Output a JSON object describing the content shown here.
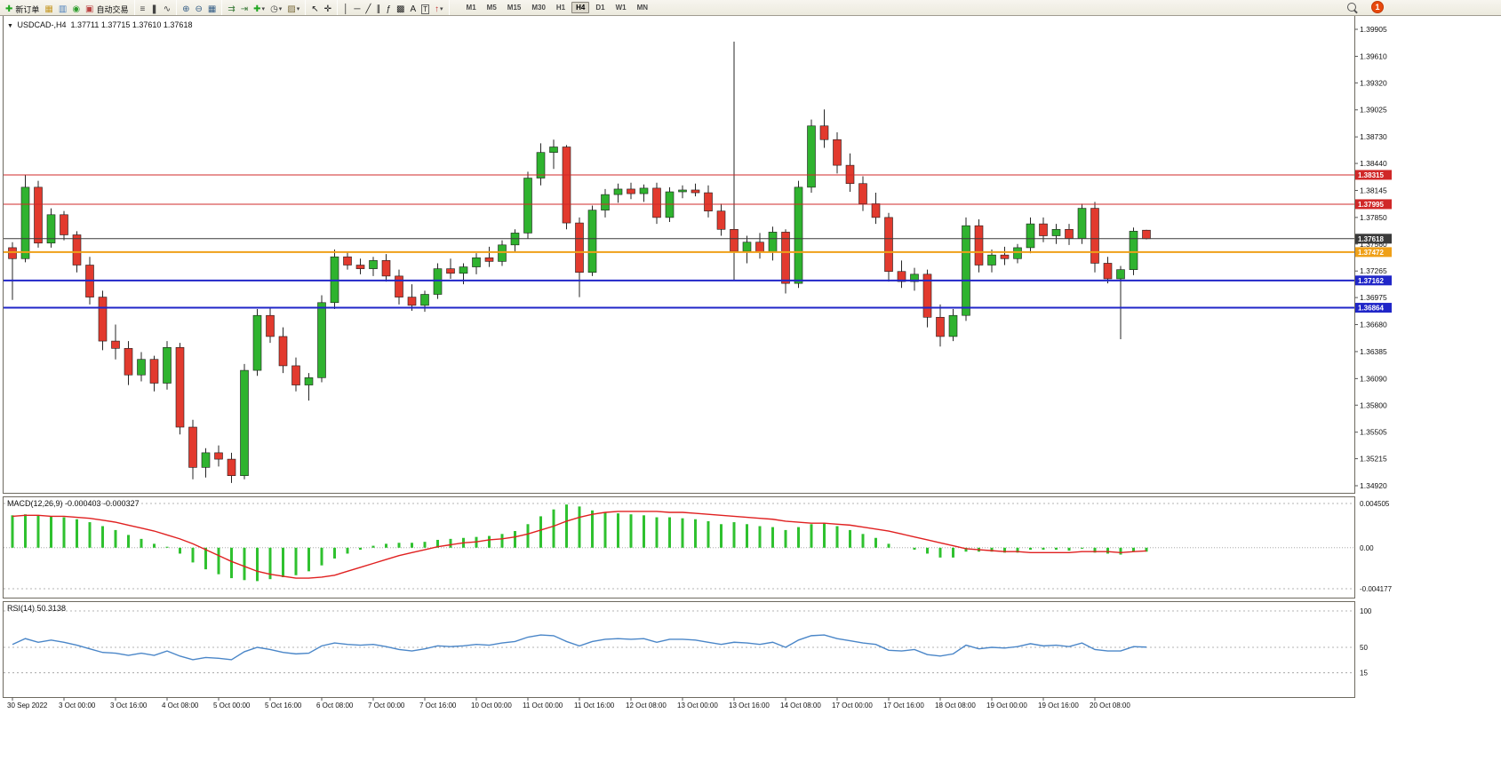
{
  "toolbar": {
    "badge": "1",
    "buttons": [
      {
        "name": "new-order",
        "icon": "new-order-icon",
        "glyph": "✚",
        "color": "#1fa51f",
        "label": "新订单"
      },
      {
        "name": "market-watch",
        "icon": "market-watch-icon",
        "glyph": "▦",
        "color": "#c79a29"
      },
      {
        "name": "data-window",
        "icon": "data-window-icon",
        "glyph": "▥",
        "color": "#4a7ebb"
      },
      {
        "name": "navigator",
        "icon": "navigator-icon",
        "glyph": "◉",
        "color": "#2f9e2f"
      },
      {
        "name": "auto-trading",
        "icon": "autotrading-icon",
        "glyph": "▣",
        "color": "#bb4444",
        "label": "自动交易"
      },
      {
        "type": "sep"
      },
      {
        "name": "bar-chart-mode",
        "icon": "ohlc-bars-icon",
        "glyph": "≡",
        "color": "#444444"
      },
      {
        "name": "candle-chart-mode",
        "icon": "candlestick-icon",
        "glyph": "❚",
        "color": "#444444"
      },
      {
        "name": "line-chart-mode",
        "icon": "line-chart-icon",
        "glyph": "∿",
        "color": "#444444"
      },
      {
        "type": "sep"
      },
      {
        "name": "zoom-in",
        "icon": "zoom-in-icon",
        "glyph": "⊕",
        "color": "#335c85"
      },
      {
        "name": "zoom-out",
        "icon": "zoom-out-icon",
        "glyph": "⊖",
        "color": "#335c85"
      },
      {
        "name": "tile-windows",
        "icon": "tile-windows-icon",
        "glyph": "▦",
        "color": "#335c85"
      },
      {
        "type": "sep"
      },
      {
        "name": "auto-scroll",
        "icon": "auto-scroll-icon",
        "glyph": "⇉",
        "color": "#3a7a3a"
      },
      {
        "name": "chart-shift",
        "icon": "chart-shift-icon",
        "glyph": "⇥",
        "color": "#3a7a3a"
      },
      {
        "name": "indicators",
        "icon": "add-indicator-icon",
        "glyph": "✚",
        "color": "#1fa51f",
        "caret": true
      },
      {
        "name": "periods",
        "icon": "clock-icon",
        "glyph": "◷",
        "color": "#444444",
        "caret": true
      },
      {
        "name": "templates",
        "icon": "template-icon",
        "glyph": "▨",
        "color": "#7a6a3a",
        "caret": true
      },
      {
        "type": "sep"
      },
      {
        "name": "cursor",
        "icon": "cursor-icon",
        "glyph": "↖",
        "color": "#222222"
      },
      {
        "name": "crosshair",
        "icon": "crosshair-icon",
        "glyph": "✛",
        "color": "#222222"
      },
      {
        "type": "sep"
      },
      {
        "name": "vertical-line",
        "icon": "vline-icon",
        "glyph": "│",
        "color": "#222222"
      },
      {
        "name": "horizontal-line",
        "icon": "hline-icon",
        "glyph": "─",
        "color": "#222222"
      },
      {
        "name": "trendline",
        "icon": "trendline-icon",
        "glyph": "╱",
        "color": "#222222"
      },
      {
        "name": "channel",
        "icon": "channel-icon",
        "glyph": "∥",
        "color": "#222222"
      },
      {
        "name": "fibonacci",
        "icon": "fibonacci-icon",
        "glyph": "ƒ",
        "color": "#222222"
      },
      {
        "name": "shapes",
        "icon": "shapes-icon",
        "glyph": "▩",
        "color": "#222222"
      },
      {
        "name": "text",
        "icon": "text-icon",
        "glyph": "A",
        "color": "#222222"
      },
      {
        "name": "text-label",
        "icon": "text-label-icon",
        "glyph": "T",
        "color": "#222222",
        "boxed": true
      },
      {
        "name": "arrows",
        "icon": "arrow-objects-icon",
        "glyph": "↑",
        "color": "#c03030",
        "caret": true
      },
      {
        "type": "sep"
      }
    ],
    "timeframes": [
      {
        "label": "M1"
      },
      {
        "label": "M5"
      },
      {
        "label": "M15"
      },
      {
        "label": "M30"
      },
      {
        "label": "H1"
      },
      {
        "label": "H4",
        "active": true
      },
      {
        "label": "D1"
      },
      {
        "label": "W1"
      },
      {
        "label": "MN"
      }
    ]
  },
  "chart": {
    "dropdown_marker": "▼",
    "symbol_title": "USDCAD-,H4",
    "ohlc_title": "1.37711 1.37715 1.37610 1.37618"
  },
  "chart_data": {
    "type": "candlestick",
    "symbol": "USDCAD",
    "timeframe": "H4",
    "colors": {
      "bull": "#2fb32f",
      "bear": "#e23a2e",
      "wick": "#262626",
      "candle_border": "#1c1c1c",
      "histogram": "#2fc12f",
      "signal": "#e02020",
      "rsi_line": "#4a86c8",
      "resistance": "#d02828",
      "support": "#2026c8",
      "pivot": "#efa018",
      "bid": "#3a3a3a"
    },
    "price_axis": {
      "min": 1.3492,
      "max": 1.39905,
      "ticks": [
        "1.39905",
        "1.39610",
        "1.39320",
        "1.39025",
        "1.38730",
        "1.38440",
        "1.38145",
        "1.37850",
        "1.37560",
        "1.37265",
        "1.36975",
        "1.36680",
        "1.36385",
        "1.36090",
        "1.35800",
        "1.35505",
        "1.35215",
        "1.34920"
      ]
    },
    "hlines": [
      {
        "name": "resistance-line-upper",
        "price": 1.38315,
        "color": "#d02828",
        "width": 1,
        "tag": "1.38315"
      },
      {
        "name": "resistance-line-lower",
        "price": 1.37995,
        "color": "#d02828",
        "width": 1,
        "tag": "1.37995"
      },
      {
        "name": "bid-price-line",
        "price": 1.37618,
        "color": "#3a3a3a",
        "width": 1,
        "tag": "1.37618"
      },
      {
        "name": "pivot-line-orange",
        "price": 1.37472,
        "color": "#efa018",
        "width": 2,
        "tag": "1.37472"
      },
      {
        "name": "support-line-upper",
        "price": 1.37162,
        "color": "#2026c8",
        "width": 2,
        "tag": "1.37162"
      },
      {
        "name": "support-line-lower",
        "price": 1.36864,
        "color": "#2026c8",
        "width": 2,
        "tag": "1.36864"
      }
    ],
    "x_label_every": 4,
    "x_labels": [
      "30 Sep 2022",
      "3 Oct 00:00",
      "3 Oct 16:00",
      "4 Oct 08:00",
      "5 Oct 00:00",
      "5 Oct 16:00",
      "6 Oct 08:00",
      "7 Oct 00:00",
      "7 Oct 16:00",
      "10 Oct 00:00",
      "11 Oct 00:00",
      "11 Oct 16:00",
      "12 Oct 08:00",
      "13 Oct 00:00",
      "13 Oct 16:00",
      "14 Oct 08:00",
      "17 Oct 00:00",
      "17 Oct 16:00",
      "18 Oct 08:00",
      "19 Oct 00:00",
      "19 Oct 16:00",
      "20 Oct 08:00"
    ],
    "candles": [
      [
        1.3752,
        1.3758,
        1.3695,
        1.374
      ],
      [
        1.374,
        1.3831,
        1.3736,
        1.3818
      ],
      [
        1.3818,
        1.3825,
        1.3752,
        1.3757
      ],
      [
        1.3757,
        1.3795,
        1.3752,
        1.3788
      ],
      [
        1.3788,
        1.3792,
        1.376,
        1.3766
      ],
      [
        1.3766,
        1.377,
        1.3725,
        1.3733
      ],
      [
        1.3733,
        1.3742,
        1.369,
        1.3698
      ],
      [
        1.3698,
        1.3705,
        1.364,
        1.365
      ],
      [
        1.365,
        1.3668,
        1.363,
        1.3642
      ],
      [
        1.3642,
        1.365,
        1.3602,
        1.3613
      ],
      [
        1.3613,
        1.3638,
        1.3606,
        1.363
      ],
      [
        1.363,
        1.3634,
        1.3595,
        1.3604
      ],
      [
        1.3604,
        1.365,
        1.3597,
        1.3643
      ],
      [
        1.3643,
        1.3648,
        1.3548,
        1.3556
      ],
      [
        1.3556,
        1.3564,
        1.3499,
        1.3512
      ],
      [
        1.3512,
        1.3533,
        1.3501,
        1.3528
      ],
      [
        1.3528,
        1.3536,
        1.3513,
        1.3521
      ],
      [
        1.3521,
        1.3528,
        1.3495,
        1.3503
      ],
      [
        1.3503,
        1.3625,
        1.3499,
        1.3618
      ],
      [
        1.3618,
        1.3685,
        1.3612,
        1.3678
      ],
      [
        1.3678,
        1.3687,
        1.3648,
        1.3655
      ],
      [
        1.3655,
        1.3665,
        1.3615,
        1.3623
      ],
      [
        1.3623,
        1.3632,
        1.3595,
        1.3602
      ],
      [
        1.3602,
        1.3615,
        1.3585,
        1.361
      ],
      [
        1.361,
        1.37,
        1.3605,
        1.3692
      ],
      [
        1.3692,
        1.375,
        1.3685,
        1.3742
      ],
      [
        1.3742,
        1.3748,
        1.3728,
        1.3733
      ],
      [
        1.3733,
        1.374,
        1.3723,
        1.3729
      ],
      [
        1.3729,
        1.3742,
        1.3721,
        1.3738
      ],
      [
        1.3738,
        1.3745,
        1.3715,
        1.3721
      ],
      [
        1.3721,
        1.3728,
        1.369,
        1.3698
      ],
      [
        1.3698,
        1.3712,
        1.3683,
        1.3689
      ],
      [
        1.3689,
        1.3705,
        1.3682,
        1.3701
      ],
      [
        1.3701,
        1.3735,
        1.3696,
        1.3729
      ],
      [
        1.3729,
        1.374,
        1.3718,
        1.3724
      ],
      [
        1.3724,
        1.3735,
        1.3712,
        1.3731
      ],
      [
        1.3731,
        1.3746,
        1.3723,
        1.3741
      ],
      [
        1.3741,
        1.3753,
        1.3731,
        1.3737
      ],
      [
        1.3737,
        1.376,
        1.3732,
        1.3755
      ],
      [
        1.3755,
        1.3772,
        1.3748,
        1.3768
      ],
      [
        1.3768,
        1.3835,
        1.3762,
        1.3828
      ],
      [
        1.3828,
        1.3866,
        1.382,
        1.3856
      ],
      [
        1.3856,
        1.387,
        1.3838,
        1.3862
      ],
      [
        1.3862,
        1.3864,
        1.3772,
        1.3779
      ],
      [
        1.3779,
        1.3785,
        1.3698,
        1.3725
      ],
      [
        1.3725,
        1.3798,
        1.3721,
        1.3793
      ],
      [
        1.3793,
        1.3816,
        1.3785,
        1.381
      ],
      [
        1.381,
        1.3822,
        1.3801,
        1.3816
      ],
      [
        1.3816,
        1.3823,
        1.3805,
        1.3811
      ],
      [
        1.3811,
        1.3821,
        1.3802,
        1.3817
      ],
      [
        1.3817,
        1.3823,
        1.3778,
        1.3785
      ],
      [
        1.3785,
        1.3818,
        1.378,
        1.3813
      ],
      [
        1.3813,
        1.382,
        1.3806,
        1.3815
      ],
      [
        1.3815,
        1.3822,
        1.3808,
        1.3812
      ],
      [
        1.3812,
        1.382,
        1.3785,
        1.3792
      ],
      [
        1.3792,
        1.38,
        1.3765,
        1.3772
      ],
      [
        1.3772,
        1.3977,
        1.3716,
        1.3748
      ],
      [
        1.3748,
        1.3765,
        1.3735,
        1.3758
      ],
      [
        1.3758,
        1.3768,
        1.374,
        1.3747
      ],
      [
        1.3747,
        1.3775,
        1.3738,
        1.3769
      ],
      [
        1.3769,
        1.3772,
        1.3702,
        1.3713
      ],
      [
        1.3713,
        1.3825,
        1.3708,
        1.3818
      ],
      [
        1.3818,
        1.3892,
        1.3812,
        1.3885
      ],
      [
        1.3885,
        1.3903,
        1.3861,
        1.387
      ],
      [
        1.387,
        1.3878,
        1.3833,
        1.3842
      ],
      [
        1.3842,
        1.3855,
        1.3813,
        1.3822
      ],
      [
        1.3822,
        1.383,
        1.3792,
        1.38
      ],
      [
        1.38,
        1.3812,
        1.3778,
        1.3785
      ],
      [
        1.3785,
        1.379,
        1.3715,
        1.3726
      ],
      [
        1.3726,
        1.3738,
        1.3708,
        1.3715
      ],
      [
        1.3715,
        1.373,
        1.3705,
        1.3723
      ],
      [
        1.3723,
        1.3728,
        1.3665,
        1.3676
      ],
      [
        1.3676,
        1.369,
        1.3644,
        1.3655
      ],
      [
        1.3655,
        1.3685,
        1.365,
        1.3678
      ],
      [
        1.3678,
        1.3785,
        1.3672,
        1.3776
      ],
      [
        1.3776,
        1.3783,
        1.3725,
        1.3733
      ],
      [
        1.3733,
        1.375,
        1.3725,
        1.3744
      ],
      [
        1.3744,
        1.3753,
        1.3733,
        1.374
      ],
      [
        1.374,
        1.3756,
        1.3735,
        1.3752
      ],
      [
        1.3752,
        1.3785,
        1.3746,
        1.3778
      ],
      [
        1.3778,
        1.3785,
        1.3758,
        1.3765
      ],
      [
        1.3765,
        1.3778,
        1.3756,
        1.3772
      ],
      [
        1.3772,
        1.3778,
        1.3755,
        1.3762
      ],
      [
        1.3762,
        1.38,
        1.3756,
        1.3795
      ],
      [
        1.3795,
        1.3802,
        1.3725,
        1.3735
      ],
      [
        1.3735,
        1.3742,
        1.3713,
        1.3718
      ],
      [
        1.3718,
        1.3732,
        1.3652,
        1.3728
      ],
      [
        1.3728,
        1.3774,
        1.3722,
        1.377
      ],
      [
        1.37711,
        1.37715,
        1.3761,
        1.37618
      ]
    ],
    "macd": {
      "label": "MACD(12,26,9) -0.000403 -0.000327",
      "axis": [
        "0.004505",
        "0.00",
        "-0.004177"
      ],
      "range": [
        -0.004177,
        0.004505
      ],
      "hist": [
        0.0033,
        0.0034,
        0.0033,
        0.0032,
        0.0031,
        0.0029,
        0.0026,
        0.0022,
        0.0018,
        0.0013,
        0.0009,
        0.0004,
        0.0001,
        -0.0006,
        -0.0015,
        -0.0022,
        -0.0027,
        -0.0031,
        -0.0033,
        -0.0034,
        -0.0032,
        -0.003,
        -0.0028,
        -0.0024,
        -0.0018,
        -0.0011,
        -0.0006,
        -0.0002,
        0.0002,
        0.0004,
        0.0005,
        0.0005,
        0.0006,
        0.0008,
        0.0009,
        0.001,
        0.0011,
        0.0012,
        0.0014,
        0.0017,
        0.0024,
        0.0032,
        0.0039,
        0.0044,
        0.0042,
        0.0038,
        0.0036,
        0.0035,
        0.0034,
        0.0033,
        0.0031,
        0.0031,
        0.003,
        0.0029,
        0.0027,
        0.0024,
        0.0026,
        0.0024,
        0.0022,
        0.0021,
        0.0018,
        0.0021,
        0.0024,
        0.0025,
        0.0022,
        0.0018,
        0.0014,
        0.001,
        0.0004,
        0.0,
        -0.0002,
        -0.0006,
        -0.001,
        -0.001,
        -0.0004,
        -0.0004,
        -0.0004,
        -0.0005,
        -0.0005,
        -0.0002,
        -0.0002,
        -0.0002,
        -0.0003,
        -0.0001,
        -0.0005,
        -0.0006,
        -0.0007,
        -0.0004,
        -0.000403
      ],
      "signal": [
        0.0032,
        0.0033,
        0.0033,
        0.0032,
        0.0032,
        0.0031,
        0.003,
        0.0028,
        0.0026,
        0.0023,
        0.002,
        0.0017,
        0.0013,
        0.0009,
        0.0004,
        -0.0002,
        -0.0008,
        -0.0014,
        -0.0019,
        -0.0024,
        -0.0027,
        -0.0029,
        -0.0031,
        -0.0031,
        -0.003,
        -0.0028,
        -0.0024,
        -0.002,
        -0.0016,
        -0.0012,
        -0.0008,
        -0.0005,
        -0.0002,
        0.0001,
        0.0003,
        0.0005,
        0.0006,
        0.0008,
        0.0009,
        0.0011,
        0.0014,
        0.0018,
        0.0022,
        0.0027,
        0.0031,
        0.0034,
        0.0036,
        0.0037,
        0.0037,
        0.0037,
        0.0037,
        0.0036,
        0.0036,
        0.0035,
        0.0034,
        0.0033,
        0.0032,
        0.0031,
        0.003,
        0.0029,
        0.0027,
        0.0026,
        0.0025,
        0.0025,
        0.0024,
        0.0023,
        0.0021,
        0.0019,
        0.0017,
        0.0014,
        0.0011,
        0.0008,
        0.0005,
        0.0002,
        -0.0001,
        -0.0002,
        -0.0003,
        -0.0004,
        -0.0004,
        -0.0005,
        -0.0005,
        -0.0005,
        -0.0005,
        -0.0004,
        -0.0004,
        -0.0004,
        -0.0005,
        -0.0004,
        -0.000327
      ]
    },
    "rsi": {
      "label": "RSI(14) 50.3138",
      "axis": [
        "100",
        "50",
        "15"
      ],
      "levels": [
        100,
        50,
        15
      ],
      "values": [
        54,
        62,
        57,
        60,
        57,
        53,
        48,
        43,
        42,
        39,
        42,
        39,
        45,
        38,
        33,
        36,
        35,
        33,
        44,
        50,
        47,
        43,
        41,
        42,
        52,
        56,
        54,
        53,
        54,
        51,
        47,
        45,
        48,
        52,
        51,
        52,
        54,
        53,
        56,
        58,
        64,
        67,
        66,
        58,
        52,
        58,
        61,
        62,
        61,
        62,
        57,
        61,
        61,
        60,
        57,
        54,
        57,
        56,
        54,
        57,
        50,
        60,
        66,
        67,
        62,
        59,
        56,
        54,
        46,
        45,
        47,
        40,
        38,
        41,
        53,
        48,
        50,
        49,
        51,
        55,
        52,
        53,
        51,
        56,
        47,
        45,
        45,
        51,
        50.31
      ]
    }
  }
}
